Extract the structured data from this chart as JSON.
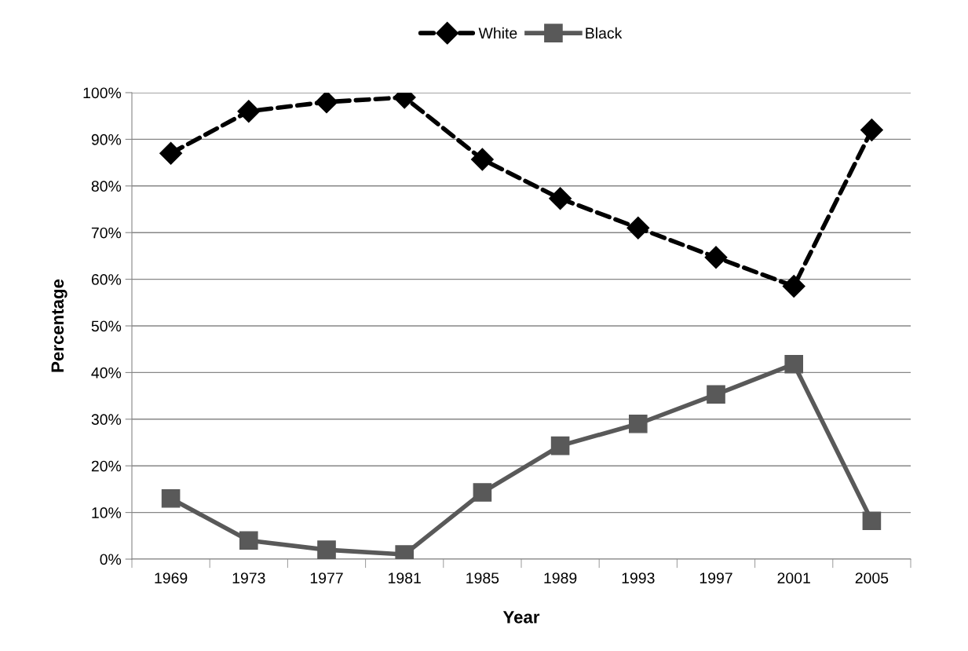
{
  "chart_data": {
    "type": "line",
    "xlabel": "Year",
    "ylabel": "Percentage",
    "categories": [
      "1969",
      "1973",
      "1977",
      "1981",
      "1985",
      "1989",
      "1993",
      "1997",
      "2001",
      "2005"
    ],
    "series": [
      {
        "name": "White",
        "color": "#000000",
        "marker": "diamond",
        "line_style": "dashed",
        "values": [
          87,
          96,
          98,
          99,
          85.7,
          77.3,
          71,
          64.7,
          58.5,
          92
        ]
      },
      {
        "name": "Black",
        "color": "#595959",
        "marker": "square",
        "line_style": "solid",
        "values": [
          13,
          4,
          2,
          1,
          14.3,
          24.3,
          29,
          35.3,
          41.8,
          8.2
        ]
      }
    ],
    "ylim": [
      0,
      100
    ],
    "yticks": [
      {
        "value": 0,
        "label": "0%"
      },
      {
        "value": 10,
        "label": "10%"
      },
      {
        "value": 20,
        "label": "20%"
      },
      {
        "value": 30,
        "label": "30%"
      },
      {
        "value": 40,
        "label": "40%"
      },
      {
        "value": 50,
        "label": "50%"
      },
      {
        "value": 60,
        "label": "60%"
      },
      {
        "value": 70,
        "label": "70%"
      },
      {
        "value": 80,
        "label": "80%"
      },
      {
        "value": 90,
        "label": "90%"
      },
      {
        "value": 100,
        "label": "100%"
      }
    ],
    "grid": "y",
    "legend": "top"
  }
}
